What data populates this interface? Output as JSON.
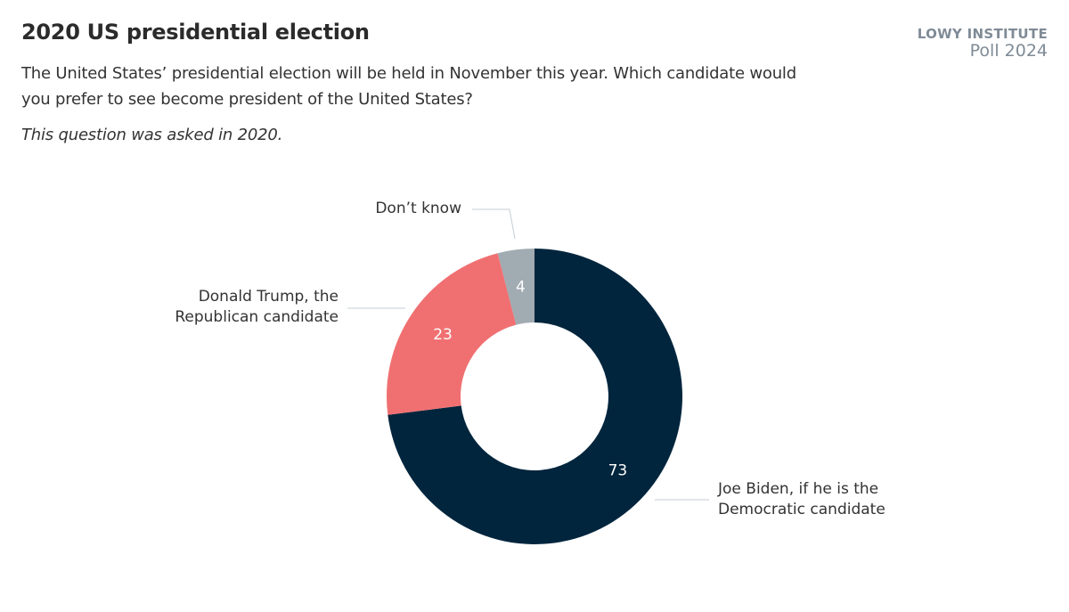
{
  "header": {
    "title": "2020 US presidential election",
    "subtitle": "The United States’ presidential election will be held in November this year. Which candidate would you prefer to see become president of the United States?",
    "note": "This question was asked in 2020."
  },
  "logo": {
    "line1": "LOWY INSTITUTE",
    "line2": "Poll 2024"
  },
  "chart_data": {
    "type": "pie",
    "variant": "donut",
    "title": "2020 US presidential election",
    "slices": [
      {
        "label": "Joe Biden, if he is the Democratic candidate",
        "value": 73,
        "color": "#00253d"
      },
      {
        "label": "Donald Trump, the Republican candidate",
        "value": 23,
        "color": "#f07072"
      },
      {
        "label": "Don’t know",
        "value": 4,
        "color": "#a0abb2"
      }
    ],
    "data_labels": [
      "73",
      "23",
      "4"
    ],
    "legend": "none"
  }
}
